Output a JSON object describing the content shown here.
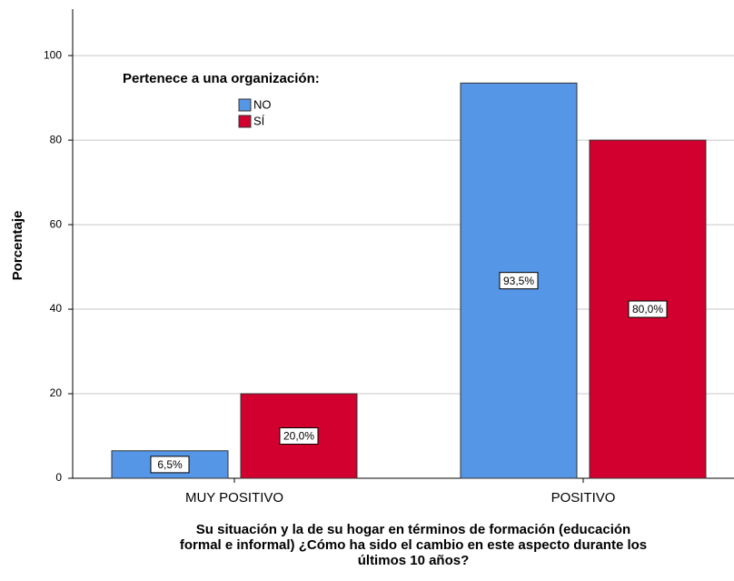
{
  "chart_data": {
    "type": "bar",
    "categories": [
      "MUY POSITIVO",
      "POSITIVO"
    ],
    "series": [
      {
        "name": "NO",
        "color": "#5596e6",
        "values": [
          6.5,
          93.5
        ],
        "value_labels": [
          "6,5%",
          "93,5%"
        ]
      },
      {
        "name": "SÍ",
        "color": "#d2002e",
        "values": [
          20.0,
          80.0
        ],
        "value_labels": [
          "20,0%",
          "80,0%"
        ]
      }
    ],
    "legend_title": "Pertenece a una organización:",
    "ylabel": "Porcentaje",
    "xlabel": [
      "Su situación y la de su hogar en términos de formación (educación",
      "formal e informal) ¿Cómo ha sido el cambio en este aspecto durante los",
      "últimos 10 años?"
    ],
    "ylim": [
      0,
      111
    ],
    "yticks": [
      0,
      20,
      40,
      60,
      80,
      100
    ],
    "grid": true,
    "legend": "upper left"
  }
}
